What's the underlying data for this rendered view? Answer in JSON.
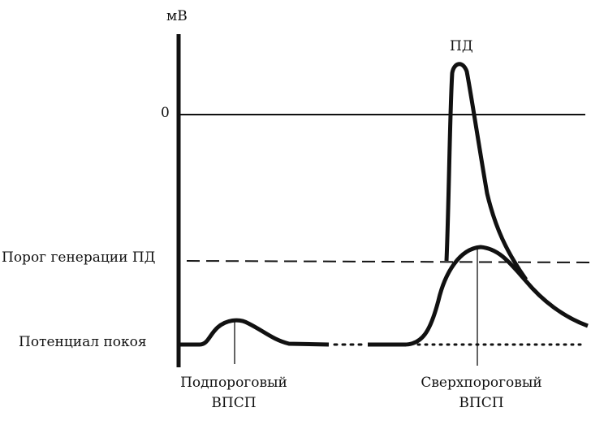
{
  "axis": {
    "unit": "мВ",
    "zero_label": "0"
  },
  "levels": {
    "threshold": "Порог генерации ПД",
    "resting": "Потенциал покоя"
  },
  "peak_label": "ПД",
  "captions": {
    "subthreshold": {
      "line1": "Подпороговый",
      "line2": "ВПСП"
    },
    "suprathreshold": {
      "line1": "Сверхпороговый",
      "line2": "ВПСП"
    }
  },
  "colors": {
    "ink": "#111111",
    "background": "#ffffff"
  }
}
